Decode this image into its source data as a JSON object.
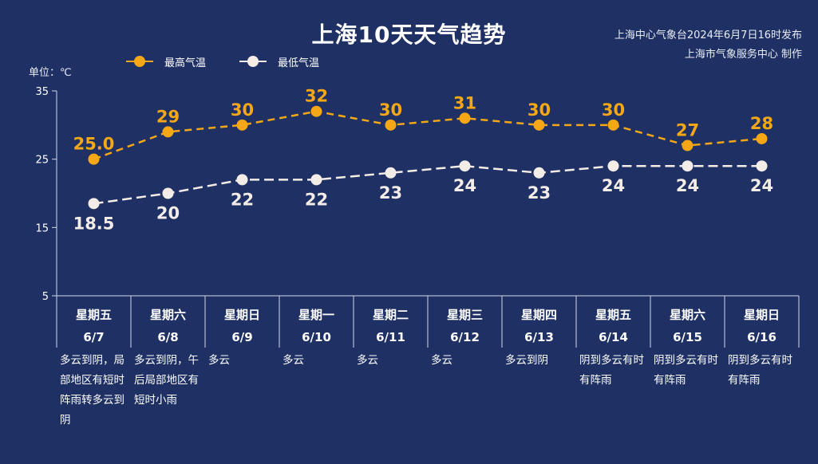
{
  "title": "上海10天天气趋势",
  "source_line1": "上海中心气象台2024年6月7日16时发布",
  "source_line2": "上海市气象服务中心 制作",
  "unit_label": "单位：℃",
  "colors": {
    "background": "#1f3164",
    "high": "#f5a716",
    "low": "#f4ece6",
    "grid": "#cfd6e6"
  },
  "legend": {
    "high_label": "最高气温",
    "low_label": "最低气温"
  },
  "chart_data": {
    "type": "line",
    "title": "上海10天天气趋势",
    "ylabel": "单位：℃",
    "ylim": [
      5,
      35
    ],
    "yticks": [
      5,
      15,
      25,
      35
    ],
    "weekdays": [
      "星期五",
      "星期六",
      "星期日",
      "星期一",
      "星期二",
      "星期三",
      "星期四",
      "星期五",
      "星期六",
      "星期日"
    ],
    "dates": [
      "6/7",
      "6/8",
      "6/9",
      "6/10",
      "6/11",
      "6/12",
      "6/13",
      "6/14",
      "6/15",
      "6/16"
    ],
    "series": [
      {
        "name": "最高气温",
        "values": [
          25.0,
          29,
          30,
          32,
          30,
          31,
          30,
          30,
          27,
          28
        ],
        "labels": [
          "25.0",
          "29",
          "30",
          "32",
          "30",
          "31",
          "30",
          "30",
          "27",
          "28"
        ]
      },
      {
        "name": "最低气温",
        "values": [
          18.5,
          20,
          22,
          22,
          23,
          24,
          23,
          24,
          24,
          24
        ],
        "labels": [
          "18.5",
          "20",
          "22",
          "22",
          "23",
          "24",
          "23",
          "24",
          "24",
          "24"
        ]
      }
    ],
    "weather": [
      "多云到阴，局部地区有短时阵雨转多云到阴",
      "多云到阴，午后局部地区有短时小雨",
      "多云",
      "多云",
      "多云",
      "多云",
      "多云到阴",
      "阴到多云有时有阵雨",
      "阴到多云有时有阵雨",
      "阴到多云有时有阵雨"
    ]
  }
}
